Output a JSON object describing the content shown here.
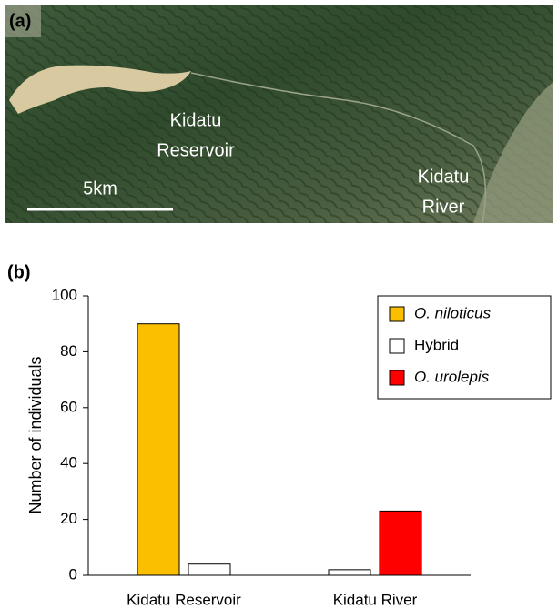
{
  "map": {
    "panel_label": "(a)",
    "reservoir_label": [
      "Kidatu",
      "Reservoir"
    ],
    "river_label": [
      "Kidatu",
      "River"
    ],
    "scale_label": "5km"
  },
  "chart_data": {
    "type": "bar",
    "panel_label": "(b)",
    "y_label": "Number  of individuals",
    "categories": [
      "Kidatu Reservoir",
      "Kidatu River"
    ],
    "series": [
      {
        "name": "O. niloticus",
        "color": "#fbbf00",
        "values": [
          90,
          null
        ]
      },
      {
        "name": "Hybrid",
        "color": "#ffffff",
        "values": [
          4,
          2
        ]
      },
      {
        "name": "O. urolepis",
        "color": "#ff0000",
        "values": [
          null,
          23
        ]
      }
    ],
    "ylim": [
      0,
      100
    ],
    "yticks": [
      0,
      20,
      40,
      60,
      80,
      100
    ],
    "legend": "upper right"
  }
}
